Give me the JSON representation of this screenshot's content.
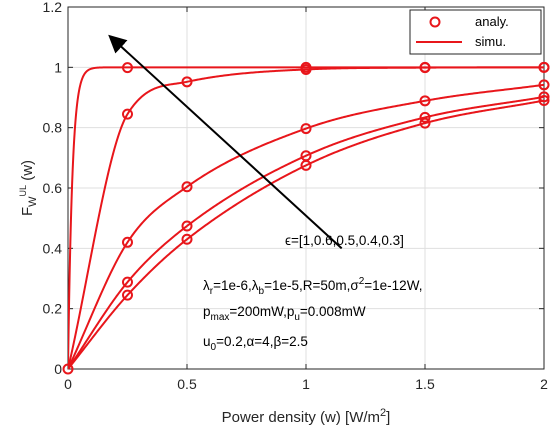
{
  "chart_data": {
    "type": "line",
    "xlabel_main": "Power density (w) [W/m",
    "xlabel_sup": "2",
    "xlabel_tail": "]",
    "ylabel_main": "F",
    "ylabel_sub": "W",
    "ylabel_sup": "UL",
    "ylabel_tail": " (w)",
    "xlim": [
      0,
      2
    ],
    "ylim": [
      0,
      1.2
    ],
    "xticks": [
      0,
      0.5,
      1,
      1.5,
      2
    ],
    "xtick_labels": [
      "0",
      "0.5",
      "1",
      "1.5",
      "2"
    ],
    "yticks": [
      0,
      0.2,
      0.4,
      0.6,
      0.8,
      1,
      1.2
    ],
    "ytick_labels": [
      "0",
      "0.2",
      "0.4",
      "0.6",
      "0.8",
      "1",
      "1.2"
    ],
    "grid": true,
    "legend": {
      "position": "top-right",
      "entries": [
        {
          "label": "analy.",
          "style": "circle"
        },
        {
          "label": "simu.",
          "style": "line"
        }
      ]
    },
    "series_color": "#e8161b",
    "series": [
      {
        "epsilon": 1,
        "sample_x": [
          0,
          0.25,
          0.5,
          1,
          1.5,
          2
        ],
        "sample_y": [
          0,
          0.999,
          1.0,
          1.0,
          1.0,
          1.0
        ],
        "analytical_x": [
          0.25,
          1,
          1.5,
          2
        ],
        "analytical_y": [
          0.999,
          1.0,
          1.0,
          1.0
        ]
      },
      {
        "epsilon": 0.6,
        "sample_x": [
          0,
          0.25,
          0.5,
          1,
          1.5,
          2
        ],
        "sample_y": [
          0,
          0.845,
          0.952,
          0.993,
          0.999,
          1.0
        ],
        "analytical_x": [
          0.25,
          0.5,
          1,
          1.5,
          2
        ],
        "analytical_y": [
          0.845,
          0.952,
          0.993,
          0.999,
          1.0
        ]
      },
      {
        "epsilon": 0.5,
        "sample_x": [
          0,
          0.25,
          0.5,
          1,
          1.5,
          2
        ],
        "sample_y": [
          0,
          0.42,
          0.604,
          0.797,
          0.889,
          0.942
        ],
        "analytical_x": [
          0.25,
          0.5,
          1,
          1.5,
          2
        ],
        "analytical_y": [
          0.42,
          0.604,
          0.797,
          0.889,
          0.942
        ]
      },
      {
        "epsilon": 0.4,
        "sample_x": [
          0,
          0.25,
          0.5,
          1,
          1.5,
          2
        ],
        "sample_y": [
          0,
          0.288,
          0.474,
          0.707,
          0.834,
          0.902
        ],
        "analytical_x": [
          0.25,
          0.5,
          1,
          1.5,
          2
        ],
        "analytical_y": [
          0.288,
          0.474,
          0.707,
          0.834,
          0.902
        ]
      },
      {
        "epsilon": 0.3,
        "sample_x": [
          0,
          0.25,
          0.5,
          1,
          1.5,
          2
        ],
        "sample_y": [
          0,
          0.245,
          0.43,
          0.675,
          0.815,
          0.89
        ],
        "analytical_x": [
          0.25,
          0.5,
          1,
          1.5,
          2
        ],
        "analytical_y": [
          0.245,
          0.43,
          0.675,
          0.815,
          0.89
        ]
      }
    ],
    "origin_marker": {
      "x": 0,
      "y": 0
    },
    "arrow": {
      "from": [
        1.15,
        0.4
      ],
      "to": [
        0.18,
        1.1
      ]
    },
    "annotations": {
      "epsilon_line": "ϵ=[1,0.6,0.5,0.4,0.3]",
      "params_line1": "λr=1e-6,λb=1e-5,R=50m,σ2=1e-12W,",
      "params_line2": "pmax=200mW,pu=0.008mW",
      "params_line3": "u0=0.2,α=4,β=2.5",
      "p1": {
        "lambda": "λ",
        "r": "r",
        "eq_r": "=1e-6,",
        "lambda_b": "λ",
        "b": "b",
        "eq_b": "=1e-5,R=50m,",
        "sigma": "σ",
        "sq": "2",
        "eq_s": "=1e-12W,"
      },
      "p2": {
        "p": "p",
        "max": "max",
        "eq_max": "=200mW,",
        "p_u": "p",
        "u": "u",
        "eq_u": "=0.008mW"
      },
      "p3": {
        "u": "u",
        "zero": "0",
        "eq": "=0.2,",
        "alpha": "α",
        "eq_a": "=4,",
        "beta": "β",
        "eq_b": "=2.5"
      }
    }
  }
}
